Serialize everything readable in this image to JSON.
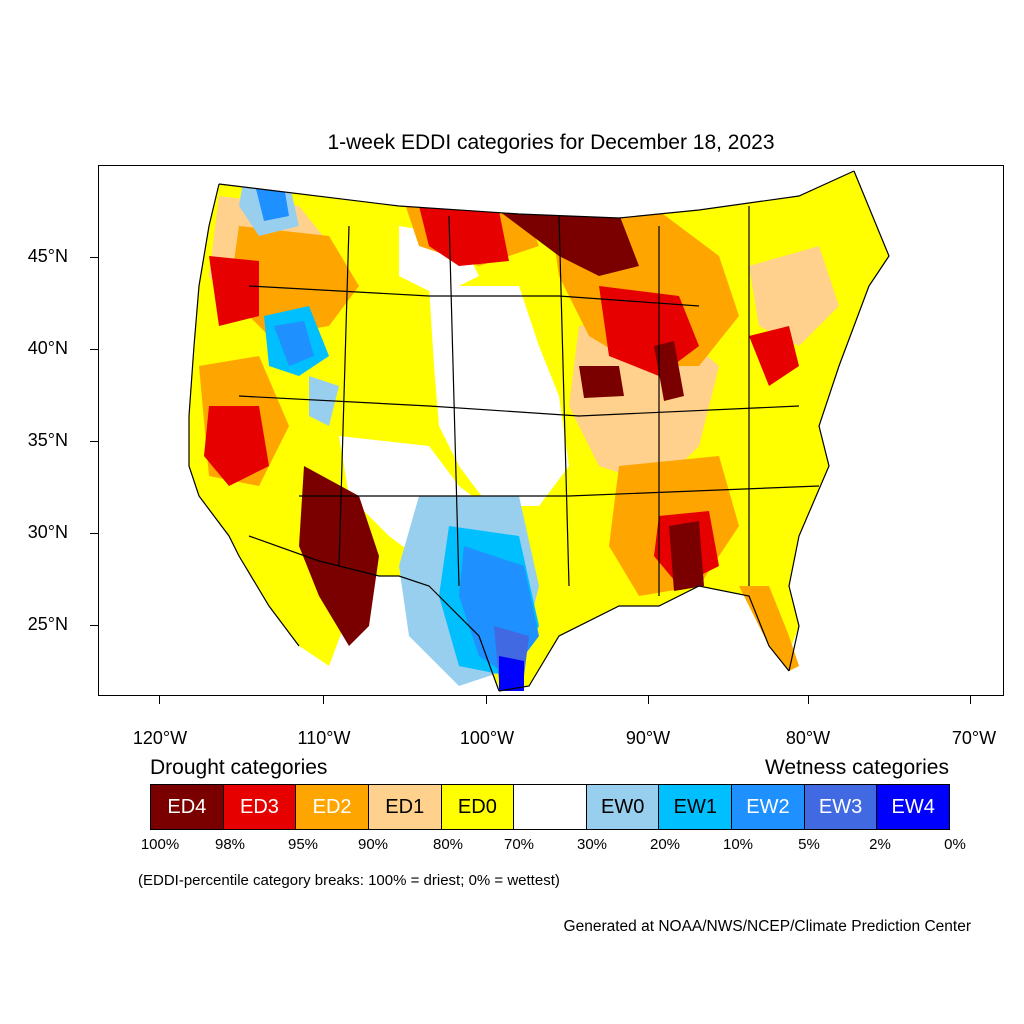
{
  "title": "1-week EDDI categories for December 18, 2023",
  "map": {
    "lat_labels": [
      "45°N",
      "40°N",
      "35°N",
      "30°N",
      "25°N"
    ],
    "lon_labels": [
      "120°W",
      "110°W",
      "100°W",
      "90°W",
      "80°W",
      "70°W"
    ]
  },
  "legend": {
    "drought_heading": "Drought categories",
    "wetness_heading": "Wetness categories",
    "categories": [
      {
        "label": "ED4",
        "color": "#7a0000",
        "text_color": "#ffffff"
      },
      {
        "label": "ED3",
        "color": "#e60000",
        "text_color": "#ffffff"
      },
      {
        "label": "ED2",
        "color": "#ffa500",
        "text_color": "#ffffff"
      },
      {
        "label": "ED1",
        "color": "#ffd18c",
        "text_color": "#000000"
      },
      {
        "label": "ED0",
        "color": "#ffff00",
        "text_color": "#000000"
      },
      {
        "label": "",
        "color": "#ffffff",
        "text_color": "#000000"
      },
      {
        "label": "EW0",
        "color": "#99cfee",
        "text_color": "#000000"
      },
      {
        "label": "EW1",
        "color": "#00bfff",
        "text_color": "#000000"
      },
      {
        "label": "EW2",
        "color": "#1e90ff",
        "text_color": "#ffffff"
      },
      {
        "label": "EW3",
        "color": "#4169e1",
        "text_color": "#ffffff"
      },
      {
        "label": "EW4",
        "color": "#0000ff",
        "text_color": "#ffffff"
      }
    ],
    "breaks": [
      "100%",
      "98%",
      "95%",
      "90%",
      "80%",
      "70%",
      "30%",
      "20%",
      "10%",
      "5%",
      "2%",
      "0%"
    ]
  },
  "note": "(EDDI-percentile category breaks: 100% = driest; 0% = wettest)",
  "credit": "Generated at NOAA/NWS/NCEP/Climate Prediction Center"
}
